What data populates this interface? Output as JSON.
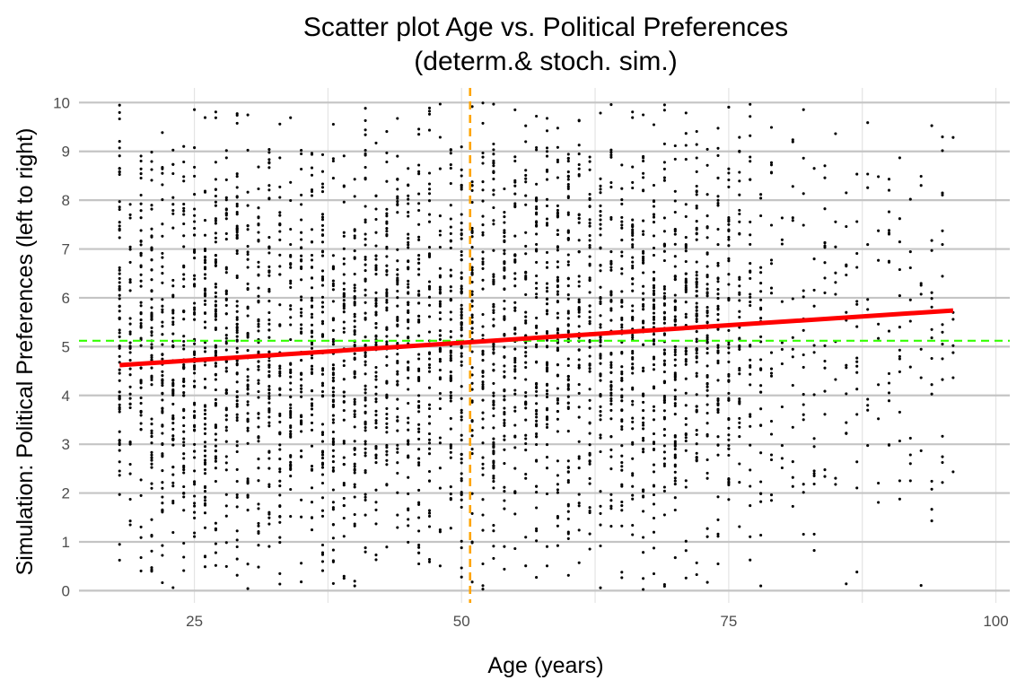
{
  "chart_data": {
    "type": "scatter",
    "title": "Scatter plot Age vs. Political Preferences",
    "subtitle": "(determ.& stoch. sim.)",
    "xlabel": "Age (years)",
    "ylabel": "Simulation: Political Preferences (left to right)",
    "xlim": [
      14.2,
      101.3
    ],
    "ylim": [
      -0.25,
      10.3
    ],
    "x_ticks": [
      25,
      50,
      75,
      100
    ],
    "y_ticks": [
      0,
      1,
      2,
      3,
      4,
      5,
      6,
      7,
      8,
      9,
      10
    ],
    "x_minor_ticks": [
      37.5,
      62.5,
      87.5
    ],
    "grid": true,
    "points_note": "approximately 4000 simulated individuals, age 18–96, preference 0–10 (integer ages, continuous preference)",
    "regression_line": {
      "color": "#ff0000",
      "x": [
        18,
        96
      ],
      "y": [
        4.62,
        5.74
      ]
    },
    "mean_x_line": {
      "color": "#ffa500",
      "x": 50.8,
      "style": "dashed"
    },
    "mean_y_line": {
      "color": "#33ff00",
      "y": 5.12,
      "style": "dashed"
    },
    "point_color": "#000000"
  }
}
